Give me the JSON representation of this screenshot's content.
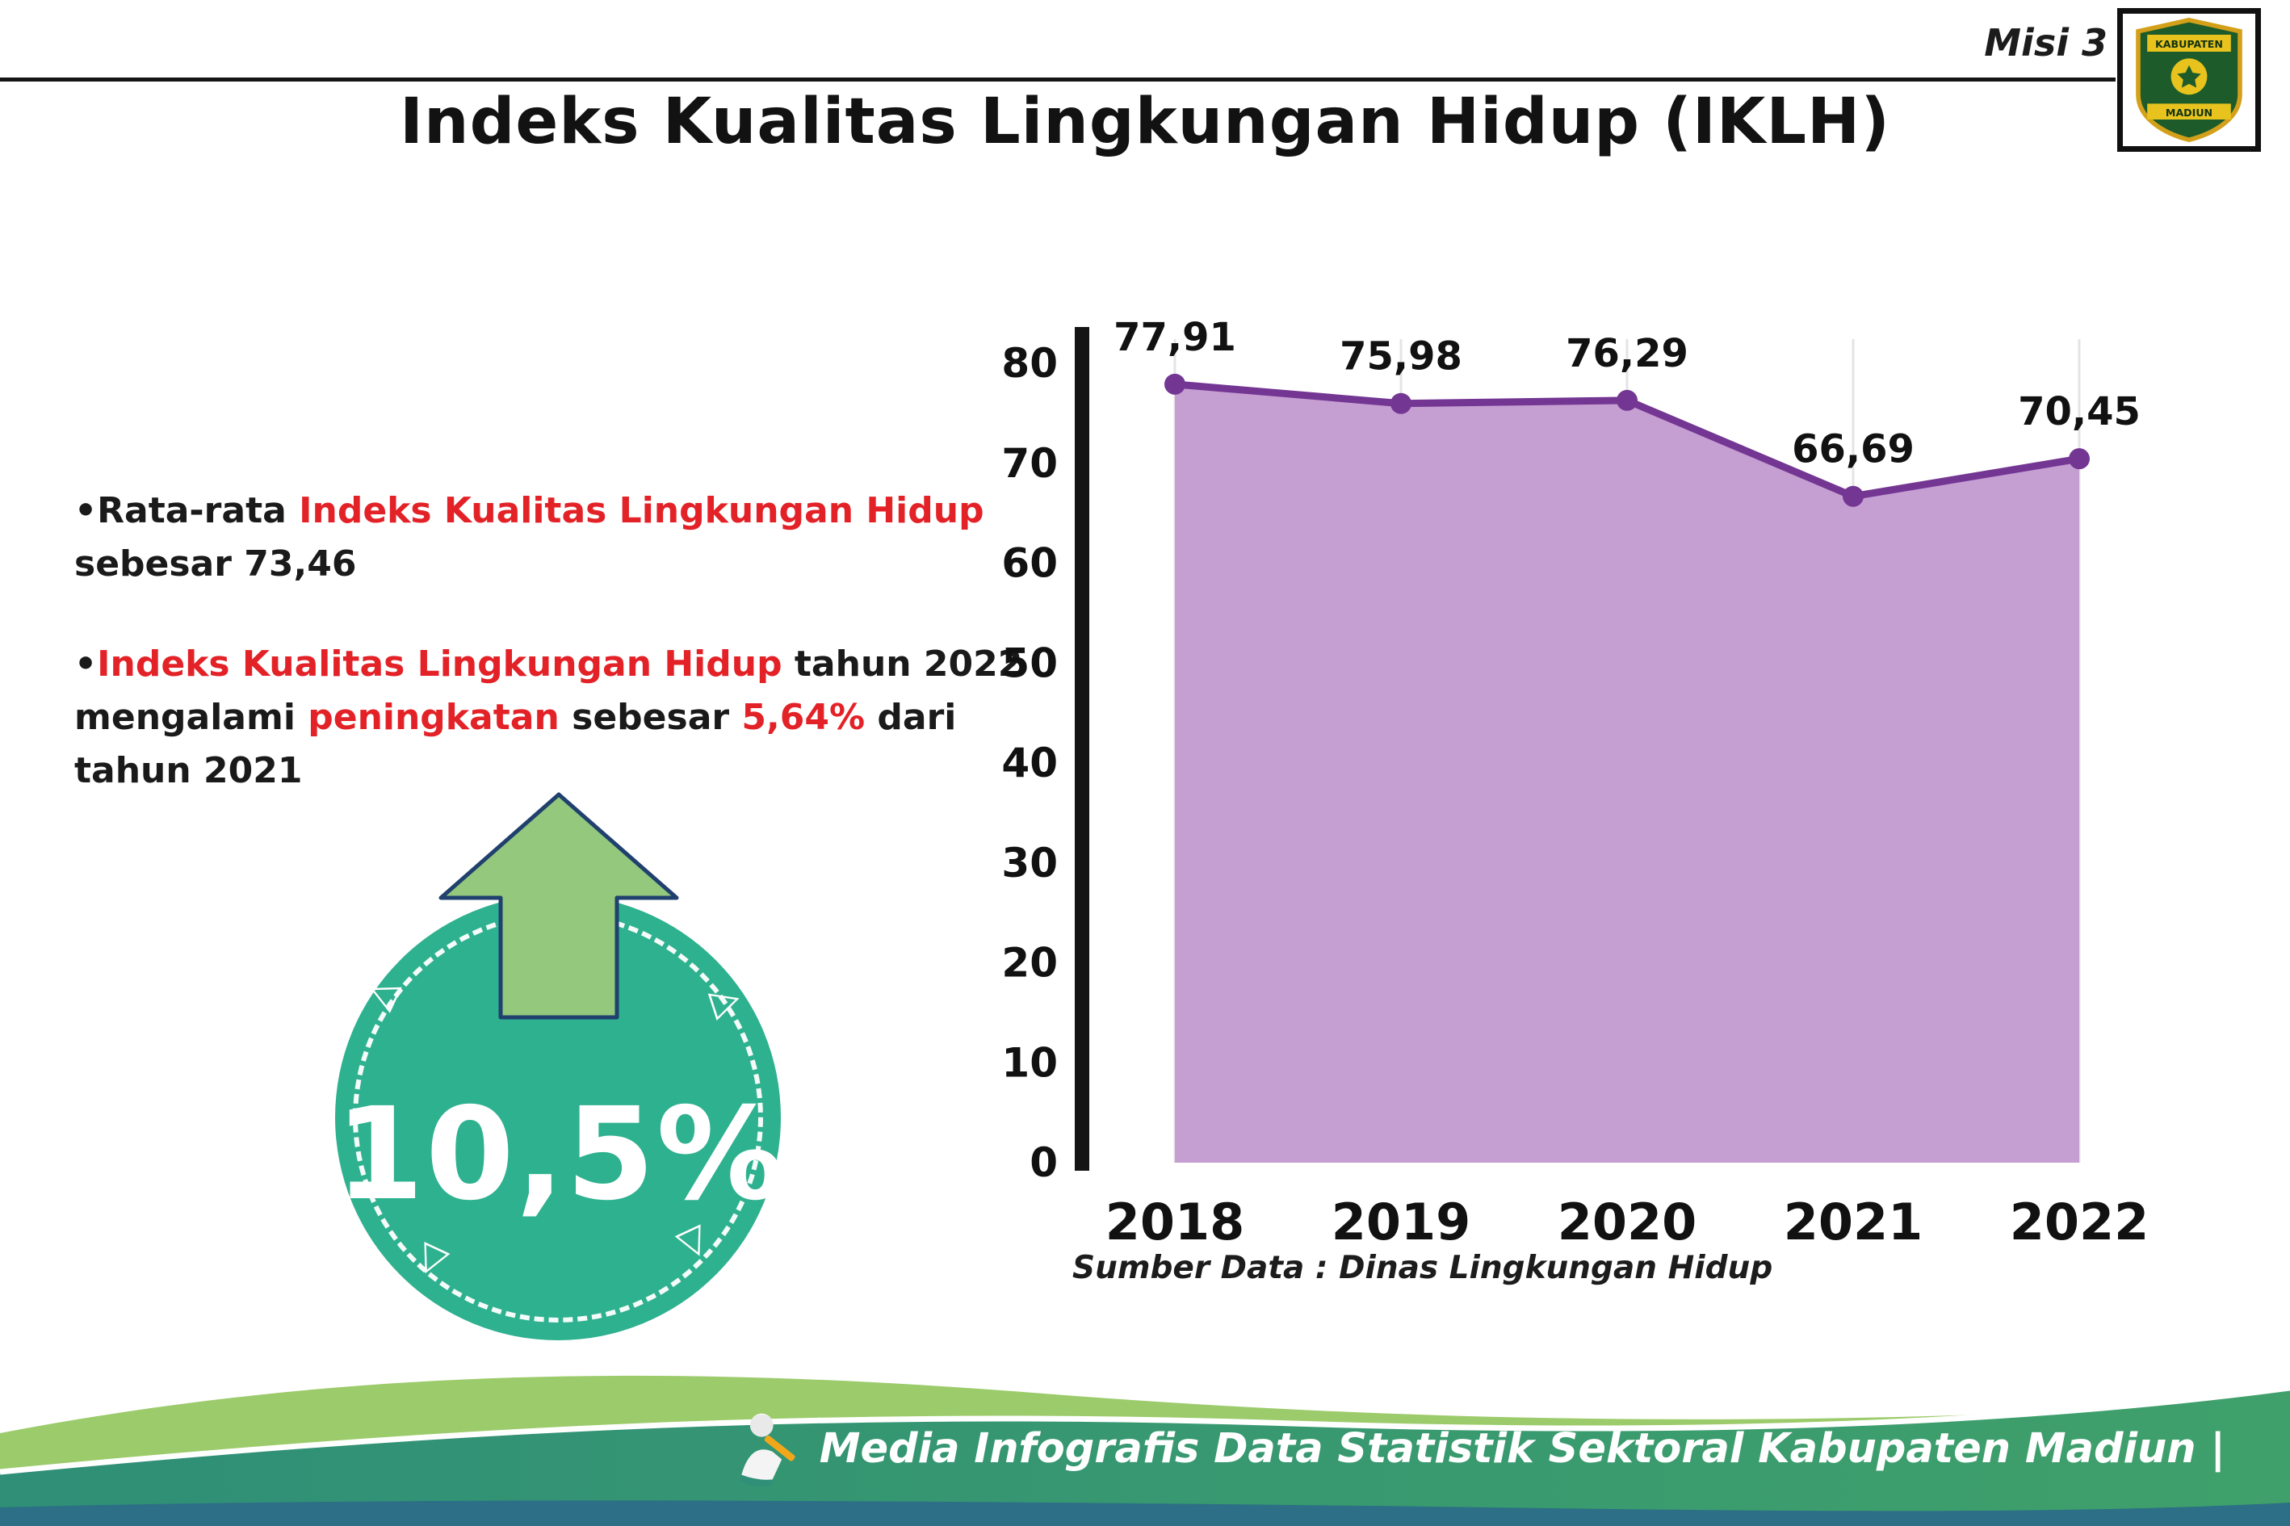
{
  "header": {
    "misi_label": "Misi 3",
    "title": "Indeks Kualitas Lingkungan Hidup (IKLH)",
    "logo_top": "KABUPATEN",
    "logo_bottom": "MADIUN"
  },
  "bullets": {
    "b1": {
      "s0": "•",
      "s1": "Rata-rata ",
      "s2": "Indeks Kualitas Lingkungan Hidup",
      "s3": " sebesar 73,46"
    },
    "b2": {
      "s0": "•",
      "s1": "Indeks Kualitas Lingkungan Hidup",
      "s2": " tahun 2022 mengalami ",
      "s3": "peningkatan",
      "s4": " sebesar ",
      "s5": "5,64%",
      "s6": " dari tahun 2021"
    }
  },
  "badge": {
    "value": "10,5%"
  },
  "chart_data": {
    "type": "area",
    "categories": [
      "2018",
      "2019",
      "2020",
      "2021",
      "2022"
    ],
    "values": [
      77.91,
      75.98,
      76.29,
      66.69,
      70.45
    ],
    "value_labels": [
      "77,91",
      "75,98",
      "76,29",
      "66,69",
      "70,45"
    ],
    "title": "",
    "xlabel": "",
    "ylabel": "",
    "ylim": [
      0,
      80
    ],
    "ytick_step": 10,
    "grid": "vertical-light",
    "legend": "none",
    "colors": {
      "fill": "#C59ED2",
      "line": "#743693",
      "dot": "#743693"
    }
  },
  "source_note": "Sumber Data : Dinas Lingkungan Hidup",
  "footer": {
    "text": "Media Infografis Data Statistik Sektoral Kabupaten Madiun |"
  },
  "colors": {
    "accent_red": "#E32228",
    "badge_teal": "#2EB18F",
    "arrow_green": "#93C87D",
    "footer_green": "#9CCB6B",
    "footer_teal": "#2F8F77",
    "footer_blue": "#2C6F86"
  }
}
